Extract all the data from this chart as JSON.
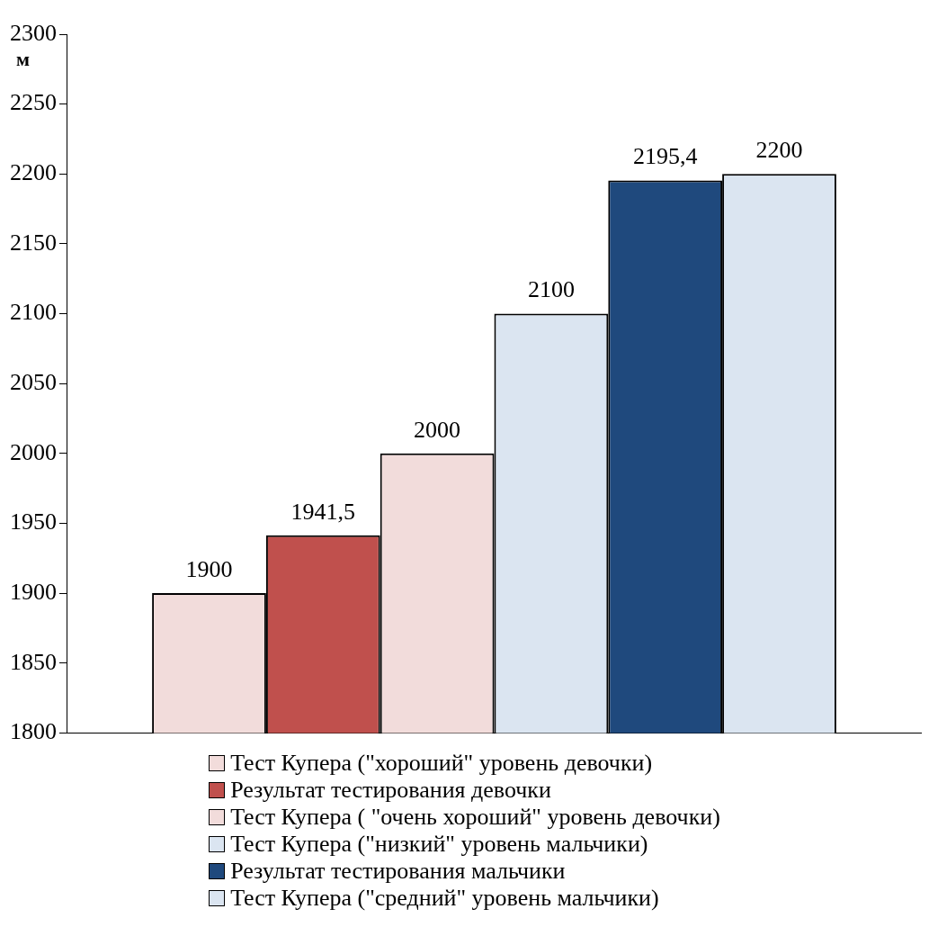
{
  "chart_data": {
    "type": "bar",
    "ylabel": "м",
    "categories": [
      null
    ],
    "series": [
      {
        "name": "Тест Купера (\"хороший\" уровень девочки)",
        "color": "#f2dcdb",
        "values": [
          1900
        ]
      },
      {
        "name": "Результат тестирования девочки",
        "color": "#c0504d",
        "values": [
          1941.5
        ]
      },
      {
        "name": "Тест Купера ( \"очень хороший\" уровень девочки)",
        "color": "#f2dcdb",
        "values": [
          2000
        ]
      },
      {
        "name": "Тест Купера (\"низкий\" уровень мальчики)",
        "color": "#dbe5f1",
        "values": [
          2100
        ]
      },
      {
        "name": "Результат тестирования мальчики",
        "color": "#1f497d",
        "values": [
          2195.4
        ]
      },
      {
        "name": "Тест Купера (\"средний\" уровень мальчики)",
        "color": "#dbe5f1",
        "values": [
          2200
        ]
      }
    ],
    "value_labels": [
      "1900",
      "1941,5",
      "2000",
      "2100",
      "2195,4",
      "2200"
    ],
    "ylim": [
      1800,
      2300
    ],
    "yticks": [
      1800,
      1850,
      1900,
      1950,
      2000,
      2050,
      2100,
      2150,
      2200,
      2250,
      2300
    ],
    "grid": false,
    "legend": "bottom"
  }
}
